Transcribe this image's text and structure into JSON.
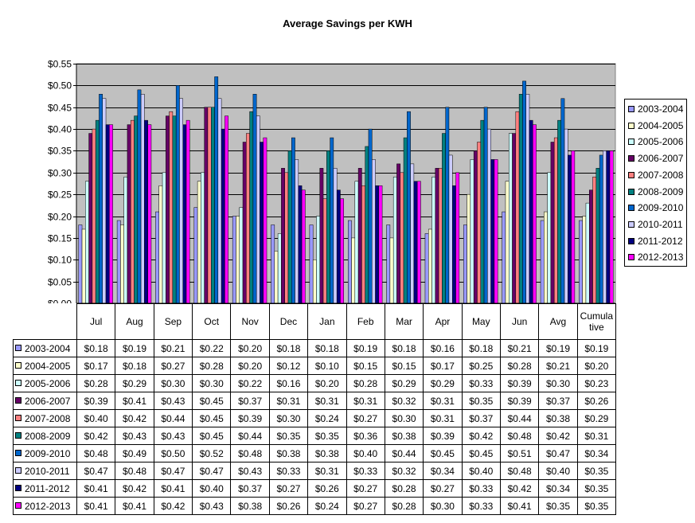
{
  "chart_data": {
    "type": "bar",
    "title": "Average Savings per KWH",
    "categories": [
      "Jul",
      "Aug",
      "Sep",
      "Oct",
      "Nov",
      "Dec",
      "Jan",
      "Feb",
      "Mar",
      "Apr",
      "May",
      "Jun",
      "Avg",
      "Cumulative"
    ],
    "category_labels": [
      "Jul",
      "Aug",
      "Sep",
      "Oct",
      "Nov",
      "Dec",
      "Jan",
      "Feb",
      "Mar",
      "Apr",
      "May",
      "Jun",
      "Avg",
      "Cumula tive"
    ],
    "ylim": [
      0,
      0.55
    ],
    "yticks": [
      "$0.00",
      "$0.05",
      "$0.10",
      "$0.15",
      "$0.20",
      "$0.25",
      "$0.30",
      "$0.35",
      "$0.40",
      "$0.45",
      "$0.50",
      "$0.55"
    ],
    "grid": true,
    "legend_position": "right",
    "plot_background": "#c0c0c0",
    "series": [
      {
        "name": "2003-2004",
        "color": "#9999ff",
        "values": [
          0.18,
          0.19,
          0.21,
          0.22,
          0.2,
          0.18,
          0.18,
          0.19,
          0.18,
          0.16,
          0.18,
          0.21,
          0.19,
          0.19
        ],
        "labels": [
          "$0.18",
          "$0.19",
          "$0.21",
          "$0.22",
          "$0.20",
          "$0.18",
          "$0.18",
          "$0.19",
          "$0.18",
          "$0.16",
          "$0.18",
          "$0.21",
          "$0.19",
          "$0.19"
        ]
      },
      {
        "name": "2004-2005",
        "color": "#ffffcc",
        "values": [
          0.17,
          0.18,
          0.27,
          0.28,
          0.2,
          0.12,
          0.1,
          0.15,
          0.15,
          0.17,
          0.25,
          0.28,
          0.21,
          0.2
        ],
        "labels": [
          "$0.17",
          "$0.18",
          "$0.27",
          "$0.28",
          "$0.20",
          "$0.12",
          "$0.10",
          "$0.15",
          "$0.15",
          "$0.17",
          "$0.25",
          "$0.28",
          "$0.21",
          "$0.20"
        ]
      },
      {
        "name": "2005-2006",
        "color": "#ccffff",
        "values": [
          0.28,
          0.29,
          0.3,
          0.3,
          0.22,
          0.16,
          0.2,
          0.28,
          0.29,
          0.29,
          0.33,
          0.39,
          0.3,
          0.23
        ],
        "labels": [
          "$0.28",
          "$0.29",
          "$0.30",
          "$0.30",
          "$0.22",
          "$0.16",
          "$0.20",
          "$0.28",
          "$0.29",
          "$0.29",
          "$0.33",
          "$0.39",
          "$0.30",
          "$0.23"
        ]
      },
      {
        "name": "2006-2007",
        "color": "#660066",
        "values": [
          0.39,
          0.41,
          0.43,
          0.45,
          0.37,
          0.31,
          0.31,
          0.31,
          0.32,
          0.31,
          0.35,
          0.39,
          0.37,
          0.26
        ],
        "labels": [
          "$0.39",
          "$0.41",
          "$0.43",
          "$0.45",
          "$0.37",
          "$0.31",
          "$0.31",
          "$0.31",
          "$0.32",
          "$0.31",
          "$0.35",
          "$0.39",
          "$0.37",
          "$0.26"
        ]
      },
      {
        "name": "2007-2008",
        "color": "#ff8080",
        "values": [
          0.4,
          0.42,
          0.44,
          0.45,
          0.39,
          0.3,
          0.24,
          0.27,
          0.3,
          0.31,
          0.37,
          0.44,
          0.38,
          0.29
        ],
        "labels": [
          "$0.40",
          "$0.42",
          "$0.44",
          "$0.45",
          "$0.39",
          "$0.30",
          "$0.24",
          "$0.27",
          "$0.30",
          "$0.31",
          "$0.37",
          "$0.44",
          "$0.38",
          "$0.29"
        ]
      },
      {
        "name": "2008-2009",
        "color": "#008080",
        "values": [
          0.42,
          0.43,
          0.43,
          0.45,
          0.44,
          0.35,
          0.35,
          0.36,
          0.38,
          0.39,
          0.42,
          0.48,
          0.42,
          0.31
        ],
        "labels": [
          "$0.42",
          "$0.43",
          "$0.43",
          "$0.45",
          "$0.44",
          "$0.35",
          "$0.35",
          "$0.36",
          "$0.38",
          "$0.39",
          "$0.42",
          "$0.48",
          "$0.42",
          "$0.31"
        ]
      },
      {
        "name": "2009-2010",
        "color": "#0066cc",
        "values": [
          0.48,
          0.49,
          0.5,
          0.52,
          0.48,
          0.38,
          0.38,
          0.4,
          0.44,
          0.45,
          0.45,
          0.51,
          0.47,
          0.34
        ],
        "labels": [
          "$0.48",
          "$0.49",
          "$0.50",
          "$0.52",
          "$0.48",
          "$0.38",
          "$0.38",
          "$0.40",
          "$0.44",
          "$0.45",
          "$0.45",
          "$0.51",
          "$0.47",
          "$0.34"
        ]
      },
      {
        "name": "2010-2011",
        "color": "#ccccff",
        "values": [
          0.47,
          0.48,
          0.47,
          0.47,
          0.43,
          0.33,
          0.31,
          0.33,
          0.32,
          0.34,
          0.4,
          0.48,
          0.4,
          0.35
        ],
        "labels": [
          "$0.47",
          "$0.48",
          "$0.47",
          "$0.47",
          "$0.43",
          "$0.33",
          "$0.31",
          "$0.33",
          "$0.32",
          "$0.34",
          "$0.40",
          "$0.48",
          "$0.40",
          "$0.35"
        ]
      },
      {
        "name": "2011-2012",
        "color": "#000080",
        "values": [
          0.41,
          0.42,
          0.41,
          0.4,
          0.37,
          0.27,
          0.26,
          0.27,
          0.28,
          0.27,
          0.33,
          0.42,
          0.34,
          0.35
        ],
        "labels": [
          "$0.41",
          "$0.42",
          "$0.41",
          "$0.40",
          "$0.37",
          "$0.27",
          "$0.26",
          "$0.27",
          "$0.28",
          "$0.27",
          "$0.33",
          "$0.42",
          "$0.34",
          "$0.35"
        ]
      },
      {
        "name": "2012-2013",
        "color": "#ff00ff",
        "values": [
          0.41,
          0.41,
          0.42,
          0.43,
          0.38,
          0.26,
          0.24,
          0.27,
          0.28,
          0.3,
          0.33,
          0.41,
          0.35,
          0.35
        ],
        "labels": [
          "$0.41",
          "$0.41",
          "$0.42",
          "$0.43",
          "$0.38",
          "$0.26",
          "$0.24",
          "$0.27",
          "$0.28",
          "$0.30",
          "$0.33",
          "$0.41",
          "$0.35",
          "$0.35"
        ]
      }
    ]
  }
}
